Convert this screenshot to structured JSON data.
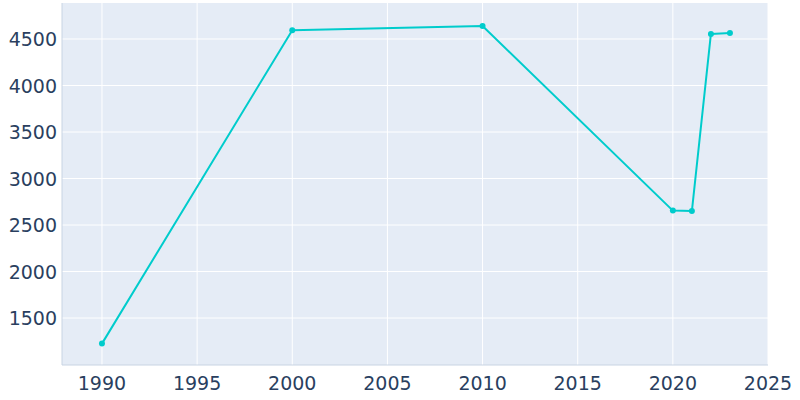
{
  "chart_data": {
    "type": "line",
    "x": [
      1990,
      2000,
      2010,
      2020,
      2021,
      2022,
      2023
    ],
    "values": [
      1225,
      4595,
      4640,
      2655,
      2650,
      4555,
      4565
    ],
    "color": "#00cccc",
    "marker": "circle",
    "xlim": [
      1987.9,
      2025
    ],
    "xticks": [
      1990,
      1995,
      2000,
      2005,
      2010,
      2015,
      2020,
      2025
    ],
    "ylim": [
      995,
      4887
    ],
    "yticks": [
      1500,
      2000,
      2500,
      3000,
      3500,
      4000,
      4500
    ],
    "grid": true
  }
}
